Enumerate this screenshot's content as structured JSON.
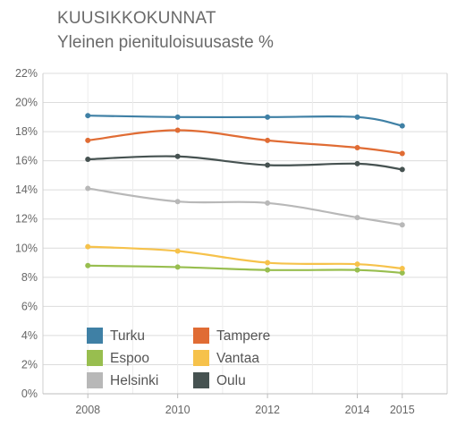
{
  "chart_data": {
    "type": "line",
    "title": "KUUSIKKOKUNNAT",
    "subtitle": "Yleinen pienituloisuusaste %",
    "xlabel": "",
    "ylabel": "",
    "x": [
      2008,
      2010,
      2012,
      2014,
      2015
    ],
    "x_ticks": [
      "2008",
      "2010",
      "2012",
      "2014",
      "2015"
    ],
    "ylim": [
      0,
      22
    ],
    "y_ticks": [
      "0%",
      "2%",
      "4%",
      "6%",
      "8%",
      "10%",
      "12%",
      "14%",
      "16%",
      "18%",
      "20%",
      "22%"
    ],
    "grid": true,
    "legend_position": "bottom-left",
    "series": [
      {
        "name": "Turku",
        "color": "#3f80a5",
        "values": [
          19.1,
          19.0,
          19.0,
          19.0,
          18.4
        ]
      },
      {
        "name": "Tampere",
        "color": "#e06c34",
        "values": [
          17.4,
          18.1,
          17.4,
          16.9,
          16.5
        ]
      },
      {
        "name": "Espoo",
        "color": "#98be4f",
        "values": [
          8.8,
          8.7,
          8.5,
          8.5,
          8.3
        ]
      },
      {
        "name": "Vantaa",
        "color": "#f6c24b",
        "values": [
          10.1,
          9.8,
          9.0,
          8.9,
          8.6
        ]
      },
      {
        "name": "Helsinki",
        "color": "#b8b8b8",
        "values": [
          14.1,
          13.2,
          13.1,
          12.1,
          11.6
        ]
      },
      {
        "name": "Oulu",
        "color": "#465251",
        "values": [
          16.1,
          16.3,
          15.7,
          15.8,
          15.4
        ]
      }
    ]
  }
}
